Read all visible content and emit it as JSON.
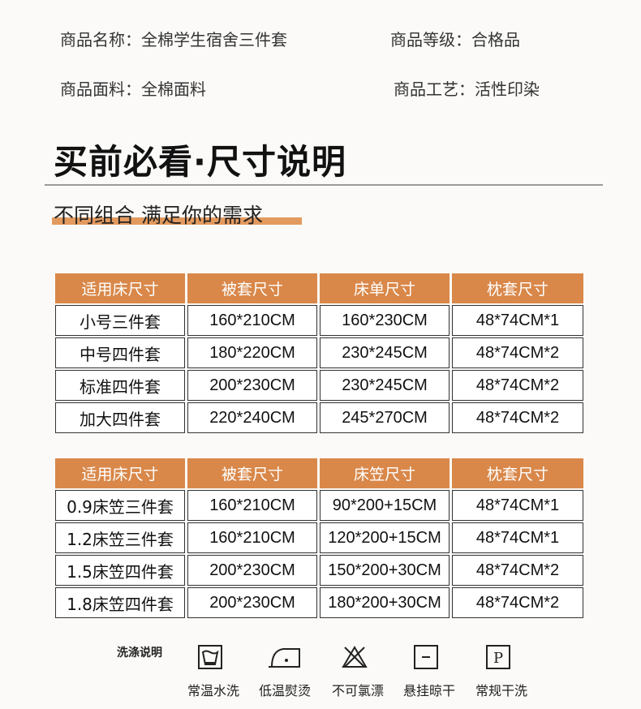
{
  "product": {
    "name": "商品名称：全棉学生宿舍三件套",
    "grade": "商品等级：合格品",
    "fabric": "商品面料：全棉面料",
    "craft": "商品工艺：活性印染"
  },
  "title": "买前必看·尺寸说明",
  "subtitle": "不同组合 满足你的需求",
  "accent": "#d9884a",
  "table1": {
    "headers": [
      "适用床尺寸",
      "被套尺寸",
      "床单尺寸",
      "枕套尺寸"
    ],
    "rows": [
      [
        "小号三件套",
        "160*210CM",
        "160*230CM",
        "48*74CM*1"
      ],
      [
        "中号四件套",
        "180*220CM",
        "230*245CM",
        "48*74CM*2"
      ],
      [
        "标准四件套",
        "200*230CM",
        "230*245CM",
        "48*74CM*2"
      ],
      [
        "加大四件套",
        "220*240CM",
        "245*270CM",
        "48*74CM*2"
      ]
    ]
  },
  "table2": {
    "headers": [
      "适用床尺寸",
      "被套尺寸",
      "床笠尺寸",
      "枕套尺寸"
    ],
    "rows": [
      [
        "0.9床笠三件套",
        "160*210CM",
        "90*200+15CM",
        "48*74CM*1"
      ],
      [
        "1.2床笠三件套",
        "160*210CM",
        "120*200+15CM",
        "48*74CM*1"
      ],
      [
        "1.5床笠四件套",
        "200*230CM",
        "150*200+30CM",
        "48*74CM*2"
      ],
      [
        "1.8床笠四件套",
        "200*230CM",
        "180*200+30CM",
        "48*74CM*2"
      ]
    ]
  },
  "wash": {
    "label": "洗涤说明",
    "items": [
      {
        "icon": "wash-tub-icon",
        "label": "常温水洗"
      },
      {
        "icon": "iron-icon",
        "label": "低温熨烫"
      },
      {
        "icon": "no-bleach-icon",
        "label": "不可氯漂"
      },
      {
        "icon": "hang-dry-icon",
        "label": "悬挂晾干"
      },
      {
        "icon": "dry-clean-icon",
        "label": "常规干洗"
      }
    ]
  }
}
